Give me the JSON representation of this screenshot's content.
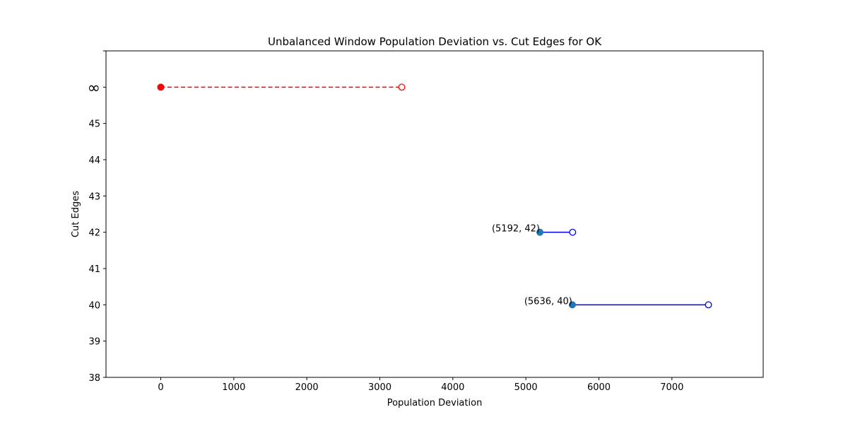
{
  "chart_data": {
    "type": "line",
    "title": "Unbalanced Window Population Deviation vs. Cut Edges for OK",
    "xlabel": "Population Deviation",
    "ylabel": "Cut Edges",
    "xlim": [
      -750,
      8250
    ],
    "ylim": [
      38,
      47
    ],
    "xticks": [
      0,
      1000,
      2000,
      3000,
      4000,
      5000,
      6000,
      7000
    ],
    "yticks": [
      38,
      39,
      40,
      41,
      42,
      43,
      44,
      45,
      "∞"
    ],
    "infinity_y_value": 46,
    "grid": false,
    "legend": "none",
    "segments": [
      {
        "y": "∞",
        "x_start": 0,
        "x_end": 3300,
        "style": "dashed",
        "color": "#ff0000"
      },
      {
        "y": 42,
        "x_start": 5192,
        "x_end": 5640,
        "style": "solid",
        "color": "#0000ff"
      },
      {
        "y": 40,
        "x_start": 5636,
        "x_end": 7500,
        "style": "solid",
        "color": "#0000ff"
      }
    ],
    "annotations": [
      {
        "text": "(5192, 42)",
        "x": 5192,
        "y": 42
      },
      {
        "text": "(5636, 40)",
        "x": 5636,
        "y": 40
      }
    ],
    "colors": {
      "filled_point": "#1f77b4",
      "inf_point": "#ff0000"
    }
  }
}
